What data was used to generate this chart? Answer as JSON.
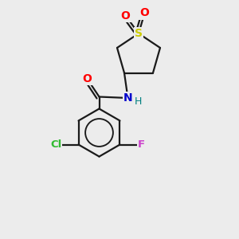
{
  "background_color": "#ececec",
  "bond_color": "#1a1a1a",
  "atom_colors": {
    "S": "#cccc00",
    "O": "#ff0000",
    "N": "#0000cc",
    "H_color": "#008080",
    "Cl": "#33bb33",
    "F": "#cc44cc",
    "C": "#1a1a1a"
  },
  "figsize": [
    3.0,
    3.0
  ],
  "dpi": 100
}
